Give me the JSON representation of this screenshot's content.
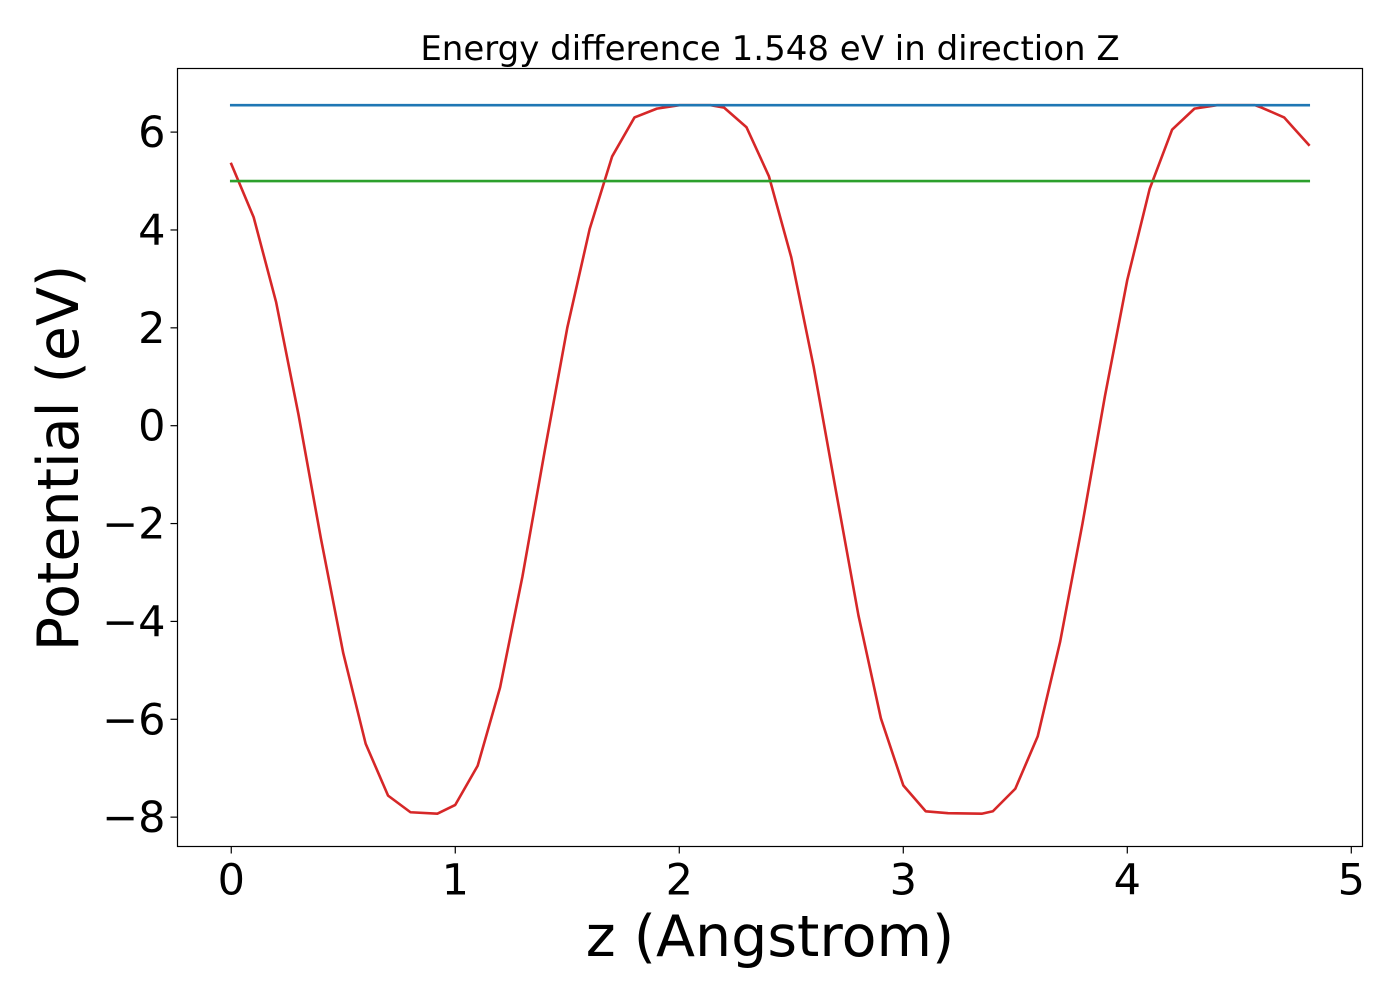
{
  "chart_data": {
    "type": "line",
    "title": "Energy difference 1.548 eV in direction Z",
    "xlabel": "z (Angstrom)",
    "ylabel": "Potential (eV)",
    "xlim": [
      -0.24,
      5.05
    ],
    "ylim": [
      -8.6,
      7.3
    ],
    "xticks": [
      0,
      1,
      2,
      3,
      4,
      5
    ],
    "xtick_labels": [
      "0",
      "1",
      "2",
      "3",
      "4",
      "5"
    ],
    "yticks": [
      -8,
      -6,
      -4,
      -2,
      0,
      2,
      4,
      6
    ],
    "ytick_labels": [
      "−8",
      "−6",
      "−4",
      "−2",
      "0",
      "2",
      "4",
      "6"
    ],
    "grid": false,
    "legend": "none",
    "series": [
      {
        "color": "#d62728",
        "x": [
          0.0,
          0.1,
          0.2,
          0.3,
          0.4,
          0.5,
          0.6,
          0.7,
          0.8,
          0.92,
          1.0,
          1.1,
          1.2,
          1.3,
          1.4,
          1.5,
          1.6,
          1.7,
          1.8,
          1.9,
          2.0,
          2.14,
          2.2,
          2.3,
          2.4,
          2.5,
          2.6,
          2.7,
          2.8,
          2.9,
          3.0,
          3.1,
          3.2,
          3.35,
          3.4,
          3.5,
          3.6,
          3.7,
          3.8,
          3.9,
          4.0,
          4.1,
          4.2,
          4.3,
          4.4,
          4.57,
          4.6,
          4.7,
          4.81
        ],
        "y": [
          5.35,
          4.26,
          2.53,
          0.23,
          -2.3,
          -4.65,
          -6.5,
          -7.56,
          -7.9,
          -7.93,
          -7.75,
          -6.95,
          -5.35,
          -3.08,
          -0.5,
          2.0,
          4.02,
          5.5,
          6.3,
          6.48,
          6.55,
          6.55,
          6.5,
          6.1,
          5.1,
          3.44,
          1.2,
          -1.35,
          -3.88,
          -5.98,
          -7.35,
          -7.88,
          -7.92,
          -7.93,
          -7.88,
          -7.42,
          -6.35,
          -4.42,
          -2.0,
          0.6,
          2.98,
          4.84,
          6.05,
          6.48,
          6.55,
          6.55,
          6.5,
          6.3,
          5.74
        ]
      },
      {
        "color": "#1f77b4",
        "x": [
          0.0,
          4.81
        ],
        "y": [
          6.55,
          6.55
        ]
      },
      {
        "color": "#2ca02c",
        "x": [
          0.0,
          4.81
        ],
        "y": [
          5.0,
          5.0
        ]
      }
    ]
  }
}
